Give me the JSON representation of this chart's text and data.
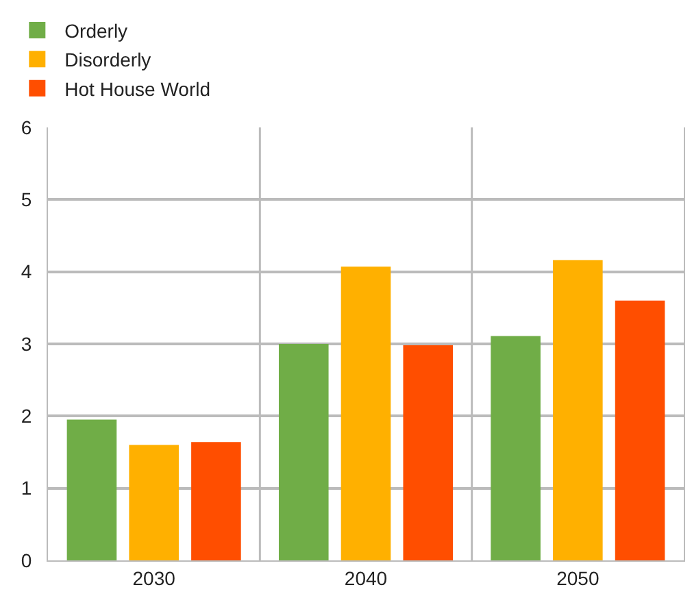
{
  "chart_data": {
    "type": "bar",
    "categories": [
      "2030",
      "2040",
      "2050"
    ],
    "series": [
      {
        "name": "Orderly",
        "color": "#70ad47",
        "values": [
          1.95,
          3.0,
          3.11
        ]
      },
      {
        "name": "Disorderly",
        "color": "#ffb000",
        "values": [
          1.6,
          4.07,
          4.16
        ]
      },
      {
        "name": "Hot House World",
        "color": "#ff4e00",
        "values": [
          1.64,
          2.98,
          3.6
        ]
      }
    ],
    "ylim": [
      0,
      6
    ],
    "yticks": [
      0,
      1,
      2,
      3,
      4,
      5,
      6
    ],
    "grid": true,
    "legend": "top left"
  }
}
